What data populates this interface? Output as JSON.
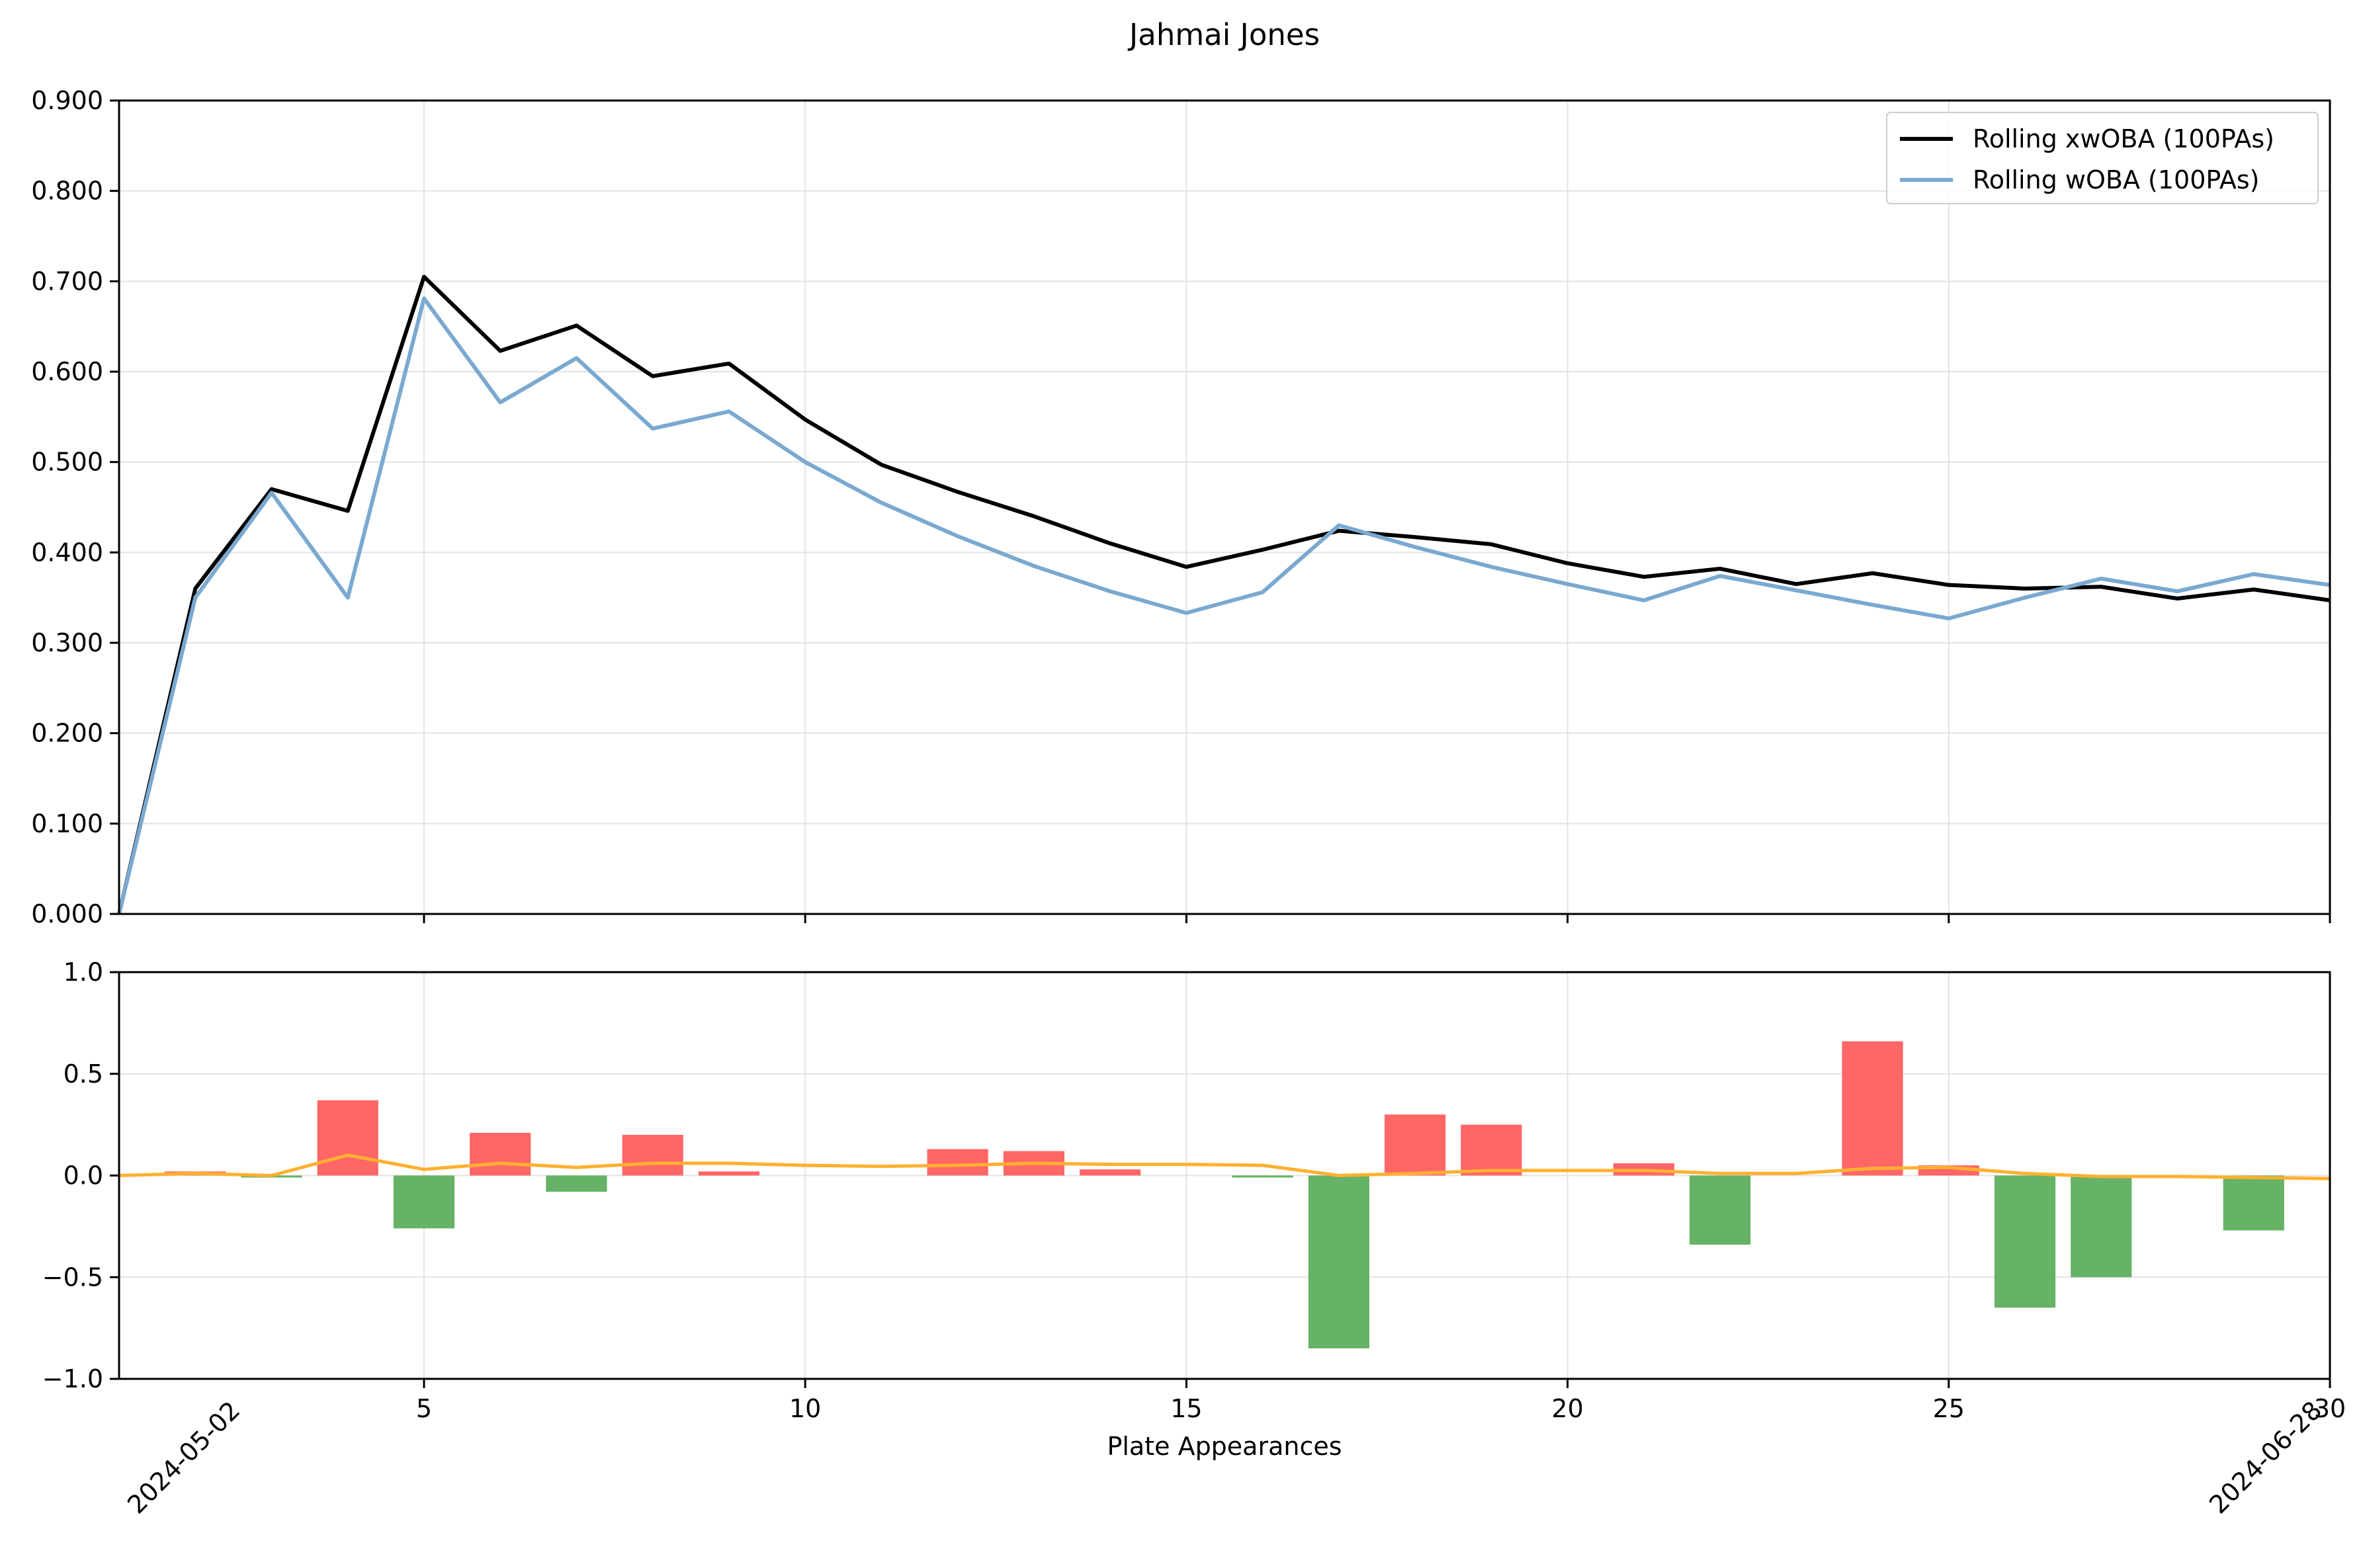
{
  "chart_data": [
    {
      "type": "line",
      "title": "Jahmai Jones",
      "xlim": [
        1,
        30
      ],
      "ylim": [
        0,
        0.9
      ],
      "grid": true,
      "legend_position": "top-right",
      "x": [
        1,
        2,
        3,
        4,
        5,
        6,
        7,
        8,
        9,
        10,
        11,
        12,
        13,
        14,
        15,
        16,
        17,
        18,
        19,
        20,
        21,
        22,
        23,
        24,
        25,
        26,
        27,
        28,
        29,
        30
      ],
      "series": [
        {
          "name": "Rolling xwOBA (100PAs)",
          "color": "#000000",
          "values": [
            0.0,
            0.36,
            0.47,
            0.446,
            0.705,
            0.623,
            0.651,
            0.595,
            0.609,
            0.547,
            0.497,
            0.467,
            0.44,
            0.41,
            0.384,
            0.403,
            0.424,
            0.417,
            0.409,
            0.388,
            0.373,
            0.382,
            0.365,
            0.377,
            0.364,
            0.36,
            0.362,
            0.349,
            0.359,
            0.347
          ]
        },
        {
          "name": "Rolling wOBA (100PAs)",
          "color": "#7aa9d0",
          "values": [
            0.0,
            0.35,
            0.466,
            0.35,
            0.681,
            0.566,
            0.615,
            0.537,
            0.556,
            0.5,
            0.455,
            0.418,
            0.385,
            0.357,
            0.333,
            0.356,
            0.43,
            0.406,
            0.384,
            0.365,
            0.347,
            0.374,
            0.358,
            0.342,
            0.327,
            0.35,
            0.371,
            0.357,
            0.376,
            0.364
          ]
        }
      ],
      "yticks": [
        "0.000",
        "0.100",
        "0.200",
        "0.300",
        "0.400",
        "0.500",
        "0.600",
        "0.700",
        "0.800",
        "0.900"
      ]
    },
    {
      "type": "bar",
      "xlim": [
        1,
        30
      ],
      "ylim": [
        -1,
        1
      ],
      "grid": true,
      "xlabel": "Plate Appearances",
      "xticks": [
        "5",
        "10",
        "15",
        "20",
        "25",
        "30"
      ],
      "yticks": [
        "−1.0",
        "−0.5",
        "0.0",
        "0.5",
        "1.0"
      ],
      "date_labels": [
        "2024-05-02",
        "2024-06-28"
      ],
      "positive_color": "#ff6666",
      "negative_color": "#66b266",
      "line_color": "#ffb030",
      "x": [
        1,
        2,
        3,
        4,
        5,
        6,
        7,
        8,
        9,
        10,
        11,
        12,
        13,
        14,
        15,
        16,
        17,
        18,
        19,
        20,
        21,
        22,
        23,
        24,
        25,
        26,
        27,
        28,
        29,
        30
      ],
      "bars": [
        0,
        0.02,
        -0.01,
        0.37,
        -0.26,
        0.21,
        -0.08,
        0.2,
        0.02,
        0,
        0,
        0.13,
        0.12,
        0.03,
        0,
        -0.01,
        -0.85,
        0.3,
        0.25,
        0,
        0.06,
        -0.34,
        0,
        0.66,
        0.05,
        -0.65,
        -0.5,
        0,
        -0.27,
        0
      ],
      "line_values": [
        0,
        0.01,
        0,
        0.1,
        0.03,
        0.06,
        0.04,
        0.06,
        0.06,
        0.05,
        0.045,
        0.05,
        0.06,
        0.055,
        0.055,
        0.05,
        0,
        0.01,
        0.025,
        0.025,
        0.025,
        0.01,
        0.01,
        0.035,
        0.04,
        0.01,
        -0.005,
        -0.005,
        -0.01,
        -0.015
      ]
    }
  ]
}
